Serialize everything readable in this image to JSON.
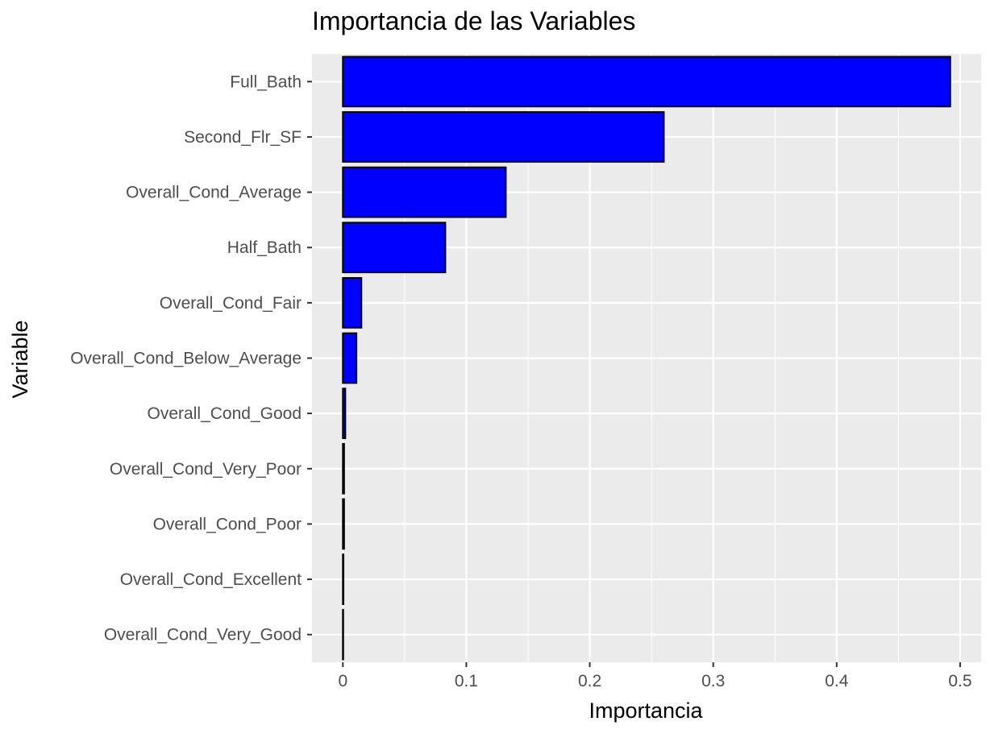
{
  "chart_data": {
    "type": "bar",
    "orientation": "horizontal",
    "title": "Importancia de las Variables",
    "xlabel": "Importancia",
    "ylabel": "Variable",
    "categories": [
      "Full_Bath",
      "Second_Flr_SF",
      "Overall_Cond_Average",
      "Half_Bath",
      "Overall_Cond_Fair",
      "Overall_Cond_Below_Average",
      "Overall_Cond_Good",
      "Overall_Cond_Very_Poor",
      "Overall_Cond_Poor",
      "Overall_Cond_Excellent",
      "Overall_Cond_Very_Good"
    ],
    "values": [
      0.492,
      0.26,
      0.132,
      0.083,
      0.015,
      0.011,
      0.002,
      0.001,
      0.001,
      0.0005,
      0.0003
    ],
    "xlim": [
      -0.025,
      0.517
    ],
    "xticks": [
      0,
      0.1,
      0.2,
      0.3,
      0.4,
      0.5
    ],
    "xtick_labels": [
      "0",
      "0.1",
      "0.2",
      "0.3",
      "0.4",
      "0.5"
    ],
    "grid": true,
    "legend": "none",
    "colors": {
      "bar_fill": "#0000ff",
      "bar_stroke": "#000000",
      "panel_background": "#ebebeb",
      "grid_major": "#ffffff",
      "tick_label": "#4d4d4d"
    }
  }
}
